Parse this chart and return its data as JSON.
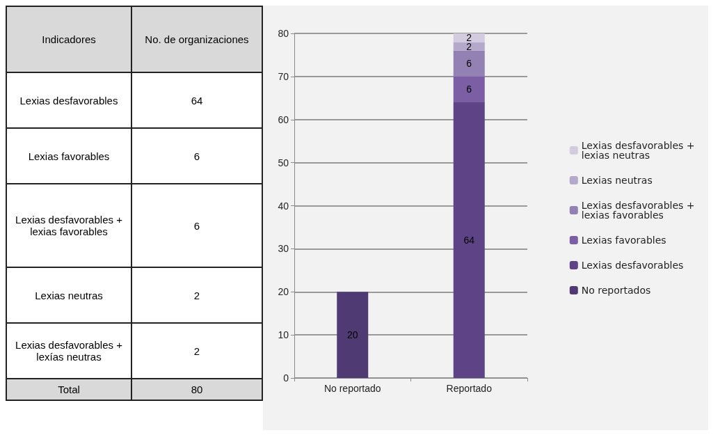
{
  "chart_data": [
    {
      "type": "other",
      "xlabel": "Indicadores",
      "ylabel": "No. de organizaciones",
      "categories": [
        "Lexias desfavorables",
        "Lexias favorables",
        "Lexias desfavorables + lexias favorables",
        "Lexias neutras",
        "Lexias desfavorables + lexías neutras"
      ],
      "values": [
        64,
        6,
        6,
        2,
        2
      ],
      "data_labels": true,
      "annotations": [
        "Total"
      ],
      "totals": [
        "80"
      ]
    },
    {
      "type": "bar",
      "stacked": true,
      "categories": [
        "No reportado",
        "Reportado"
      ],
      "ylim": [
        0,
        80
      ],
      "yticks": [
        0,
        10,
        20,
        30,
        40,
        50,
        60,
        70,
        80
      ],
      "grid": "y",
      "legend": "right",
      "data_labels": true,
      "series": [
        {
          "name": "No reportados",
          "color": "#4f3a73",
          "values": [
            20,
            null
          ]
        },
        {
          "name": "Lexias desfavorables",
          "color": "#5e4487",
          "values": [
            null,
            64
          ]
        },
        {
          "name": "Lexias favorables",
          "color": "#7b5ea3",
          "values": [
            null,
            6
          ]
        },
        {
          "name": "Lexias desfavorables + lexias favorables",
          "color": "#9481b3",
          "values": [
            null,
            6
          ]
        },
        {
          "name": "Lexias neutras",
          "color": "#b4a8cb",
          "values": [
            null,
            2
          ]
        },
        {
          "name": "Lexias desfavorables + lexias neutras",
          "color": "#d3cce0",
          "values": [
            null,
            2
          ]
        }
      ]
    }
  ]
}
